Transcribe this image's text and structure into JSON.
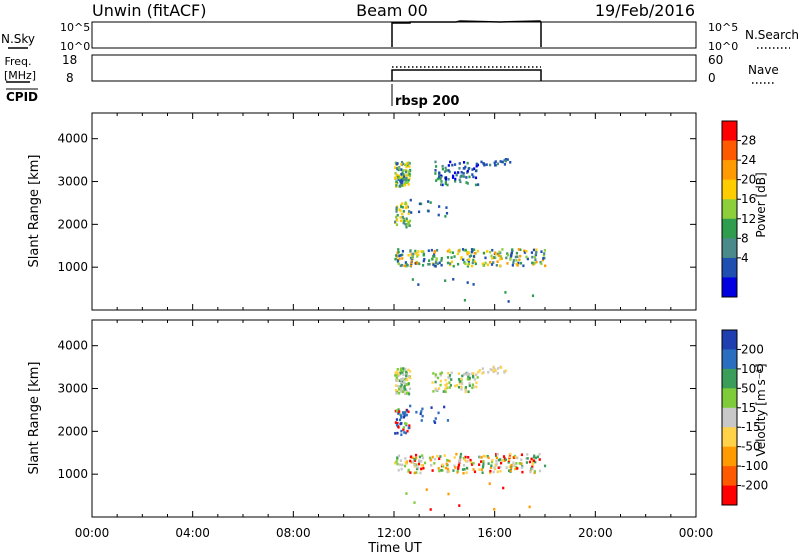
{
  "header": {
    "station": "Unwin (fitACF)",
    "beam": "Beam 00",
    "date": "19/Feb/2016"
  },
  "summary_panels": {
    "nsky": {
      "label": "N.Sky",
      "left_ticks": [
        "10^5",
        "10^0"
      ],
      "right_ticks": [
        "10^5",
        "10^0"
      ],
      "right_label": "N.Search"
    },
    "freq": {
      "label_line1": "Freq.",
      "label_line2": "[MHz]",
      "left_ticks": [
        "18",
        "8"
      ],
      "right_ticks": [
        "60",
        "0"
      ],
      "right_label": "Nave"
    },
    "cpid": {
      "label": "CPID",
      "program": "rbsp 200"
    }
  },
  "chart_data": [
    {
      "type": "heatmap",
      "name": "power",
      "ylabel": "Slant Range [km]",
      "ylim": [
        0,
        4600
      ],
      "yticks": [
        1000,
        2000,
        3000,
        4000
      ],
      "xlim_hours": [
        0,
        24
      ],
      "colorbar": {
        "label": "Power [dB]",
        "ticks": [
          "28",
          "24",
          "20",
          "16",
          "12",
          "8",
          "4"
        ],
        "colors": [
          "#ff0000",
          "#ff5a00",
          "#ff9a00",
          "#ffcc00",
          "#8ccf3a",
          "#2e9e4e",
          "#4a8a8a",
          "#1f4fb0",
          "#0000e0"
        ]
      },
      "clusters": [
        {
          "t0": 12.0,
          "t1": 12.6,
          "r0": 2900,
          "r1": 3500,
          "n": 90,
          "colors": [
            "#2e9e4e",
            "#8ccf3a",
            "#ffcc00",
            "#1f4fb0",
            "#4a8a8a"
          ]
        },
        {
          "t0": 13.6,
          "t1": 15.3,
          "r0": 2950,
          "r1": 3500,
          "n": 80,
          "colors": [
            "#1f4fb0",
            "#2e9e4e",
            "#4a8a8a",
            "#0000e0"
          ]
        },
        {
          "t0": 15.3,
          "t1": 16.7,
          "r0": 3400,
          "r1": 3550,
          "n": 20,
          "colors": [
            "#1f4fb0",
            "#4a8a8a"
          ]
        },
        {
          "t0": 12.0,
          "t1": 12.6,
          "r0": 1950,
          "r1": 2550,
          "n": 45,
          "colors": [
            "#8ccf3a",
            "#2e9e4e",
            "#ffcc00",
            "#4a8a8a"
          ]
        },
        {
          "t0": 12.6,
          "t1": 14.1,
          "r0": 2200,
          "r1": 2700,
          "n": 14,
          "colors": [
            "#1f4fb0",
            "#2e9e4e"
          ]
        },
        {
          "t0": 12.0,
          "t1": 18.0,
          "r0": 1050,
          "r1": 1450,
          "n": 230,
          "colors": [
            "#1f4fb0",
            "#2e9e4e",
            "#ffcc00",
            "#8ccf3a",
            "#ff9a00",
            "#4a8a8a"
          ]
        },
        {
          "t0": 12.0,
          "t1": 17.8,
          "r0": 200,
          "r1": 900,
          "n": 10,
          "colors": [
            "#1f4fb0",
            "#2e9e4e"
          ]
        }
      ]
    },
    {
      "type": "heatmap",
      "name": "velocity",
      "ylabel": "Slant Range [km]",
      "xlabel": "Time UT",
      "ylim": [
        0,
        4600
      ],
      "yticks": [
        1000,
        2000,
        3000,
        4000
      ],
      "xlim_hours": [
        0,
        24
      ],
      "xticks": [
        "00:00",
        "04:00",
        "08:00",
        "12:00",
        "16:00",
        "20:00",
        "00:00"
      ],
      "colorbar": {
        "label": "Velocity [m s⁻¹]",
        "ticks": [
          "200",
          "100",
          "50",
          "15",
          "-15",
          "-50",
          "-100",
          "-200"
        ],
        "colors": [
          "#1f3fb0",
          "#2a6ec0",
          "#3a9e5a",
          "#7fcc3a",
          "#c8c8c8",
          "#ffd24a",
          "#ff9a00",
          "#ff5a00",
          "#ff0000"
        ]
      },
      "clusters": [
        {
          "t0": 12.0,
          "t1": 12.6,
          "r0": 2900,
          "r1": 3500,
          "n": 90,
          "colors": [
            "#c8c8c8",
            "#ffd24a",
            "#7fcc3a",
            "#3a9e5a"
          ]
        },
        {
          "t0": 13.4,
          "t1": 15.3,
          "r0": 2950,
          "r1": 3400,
          "n": 80,
          "colors": [
            "#c8c8c8",
            "#7fcc3a",
            "#ffd24a",
            "#3a9e5a"
          ]
        },
        {
          "t0": 15.3,
          "t1": 16.7,
          "r0": 3350,
          "r1": 3550,
          "n": 20,
          "colors": [
            "#ffd24a",
            "#c8c8c8"
          ]
        },
        {
          "t0": 12.0,
          "t1": 12.6,
          "r0": 1950,
          "r1": 2550,
          "n": 45,
          "colors": [
            "#ff0000",
            "#1f3fb0",
            "#7fcc3a",
            "#2a6ec0"
          ]
        },
        {
          "t0": 12.6,
          "t1": 14.1,
          "r0": 2200,
          "r1": 2700,
          "n": 14,
          "colors": [
            "#1f3fb0",
            "#2a6ec0"
          ]
        },
        {
          "t0": 12.0,
          "t1": 18.0,
          "r0": 1050,
          "r1": 1500,
          "n": 230,
          "colors": [
            "#7fcc3a",
            "#ff9a00",
            "#ffd24a",
            "#3a9e5a",
            "#ff0000",
            "#c8c8c8"
          ]
        },
        {
          "t0": 12.0,
          "t1": 17.8,
          "r0": 200,
          "r1": 900,
          "n": 10,
          "colors": [
            "#ff9a00",
            "#ff0000",
            "#7fcc3a"
          ]
        }
      ]
    }
  ]
}
